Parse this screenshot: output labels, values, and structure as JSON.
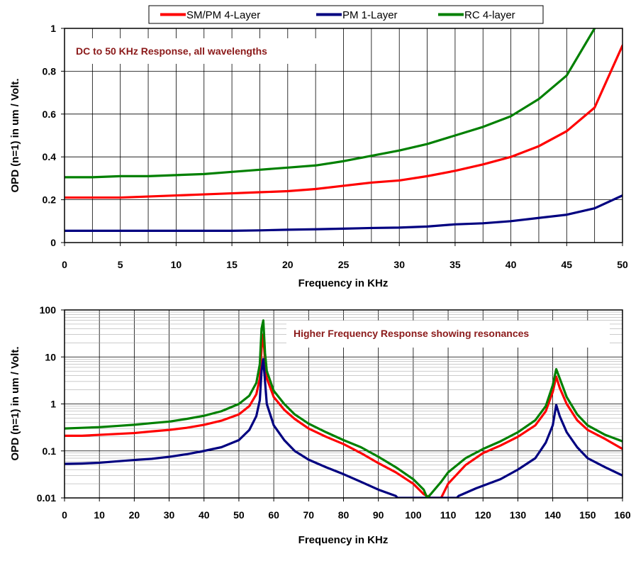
{
  "legend": {
    "items": [
      {
        "label": "SM/PM 4-Layer",
        "color": "#ff0000"
      },
      {
        "label": "PM 1-Layer",
        "color": "#000080"
      },
      {
        "label": "RC 4-layer",
        "color": "#008000"
      }
    ]
  },
  "chart_data": [
    {
      "type": "line",
      "title": "",
      "annotation": "DC to 50 KHz Response, all wavelengths",
      "xlabel": "Frequency in KHz",
      "ylabel": "OPD (n=1) in um / Volt.",
      "xlim": [
        0,
        50
      ],
      "ylim": [
        0,
        1
      ],
      "xticks": [
        "0",
        "5",
        "10",
        "15",
        "20",
        "25",
        "30",
        "35",
        "40",
        "45",
        "50"
      ],
      "yticks": [
        "0",
        "0.2",
        "0.4",
        "0.6",
        "0.8",
        "1"
      ],
      "grid": true,
      "series": [
        {
          "name": "SM/PM 4-Layer",
          "color": "#ff0000",
          "x": [
            0,
            2.5,
            5,
            7.5,
            10,
            12.5,
            15,
            17.5,
            20,
            22.5,
            25,
            27.5,
            30,
            32.5,
            35,
            37.5,
            40,
            42.5,
            45,
            47.5,
            50
          ],
          "y": [
            0.21,
            0.21,
            0.21,
            0.215,
            0.22,
            0.225,
            0.23,
            0.235,
            0.24,
            0.25,
            0.265,
            0.28,
            0.29,
            0.31,
            0.335,
            0.365,
            0.4,
            0.45,
            0.52,
            0.63,
            0.92
          ]
        },
        {
          "name": "PM 1-Layer",
          "color": "#000080",
          "x": [
            0,
            2.5,
            5,
            7.5,
            10,
            12.5,
            15,
            17.5,
            20,
            22.5,
            25,
            27.5,
            30,
            32.5,
            35,
            37.5,
            40,
            42.5,
            45,
            47.5,
            50
          ],
          "y": [
            0.055,
            0.055,
            0.055,
            0.055,
            0.055,
            0.055,
            0.055,
            0.057,
            0.06,
            0.062,
            0.065,
            0.068,
            0.07,
            0.075,
            0.085,
            0.09,
            0.1,
            0.115,
            0.13,
            0.16,
            0.22
          ]
        },
        {
          "name": "RC 4-layer",
          "color": "#008000",
          "x": [
            0,
            2.5,
            5,
            7.5,
            10,
            12.5,
            15,
            17.5,
            20,
            22.5,
            25,
            27.5,
            30,
            32.5,
            35,
            37.5,
            40,
            42.5,
            45,
            47.5
          ],
          "y": [
            0.305,
            0.305,
            0.31,
            0.31,
            0.315,
            0.32,
            0.33,
            0.34,
            0.35,
            0.36,
            0.38,
            0.405,
            0.43,
            0.46,
            0.5,
            0.54,
            0.59,
            0.67,
            0.78,
            1.0
          ]
        }
      ]
    },
    {
      "type": "line",
      "title": "",
      "annotation": "Higher Frequency Response showing resonances",
      "xlabel": "Frequency in KHz",
      "ylabel": "OPD (n=1) in um / Volt.",
      "xlim": [
        0,
        160
      ],
      "ylim": [
        0.01,
        100
      ],
      "yscale": "log",
      "xticks": [
        "0",
        "10",
        "20",
        "30",
        "40",
        "50",
        "60",
        "70",
        "80",
        "90",
        "100",
        "110",
        "120",
        "130",
        "140",
        "150",
        "160"
      ],
      "yticks": [
        "0.01",
        "0.1",
        "1",
        "10",
        "100"
      ],
      "grid": true,
      "series": [
        {
          "name": "SM/PM 4-Layer",
          "color": "#ff0000",
          "x": [
            0,
            5,
            10,
            15,
            20,
            25,
            30,
            35,
            40,
            45,
            50,
            53,
            55,
            56,
            56.5,
            57,
            57.5,
            58,
            60,
            63,
            66,
            70,
            75,
            80,
            85,
            90,
            95,
            100,
            103,
            105,
            108,
            110,
            115,
            120,
            125,
            130,
            135,
            138,
            140,
            141,
            142,
            144,
            147,
            150,
            155,
            160
          ],
          "y": [
            0.21,
            0.21,
            0.22,
            0.23,
            0.24,
            0.26,
            0.28,
            0.31,
            0.36,
            0.44,
            0.6,
            0.9,
            1.6,
            3.5,
            15,
            30,
            8,
            3.5,
            1.4,
            0.75,
            0.48,
            0.3,
            0.2,
            0.14,
            0.09,
            0.055,
            0.035,
            0.02,
            0.012,
            0.01,
            0.01,
            0.02,
            0.05,
            0.09,
            0.13,
            0.2,
            0.35,
            0.7,
            1.8,
            3.8,
            2.2,
            1.0,
            0.45,
            0.28,
            0.18,
            0.11
          ]
        },
        {
          "name": "PM 1-Layer",
          "color": "#000080",
          "x": [
            0,
            5,
            10,
            15,
            20,
            25,
            30,
            35,
            40,
            45,
            50,
            53,
            55,
            56,
            56.5,
            57,
            57.5,
            58,
            60,
            63,
            66,
            70,
            75,
            80,
            85,
            90,
            95,
            95.5,
            112.5,
            113,
            118,
            125,
            130,
            135,
            138,
            140,
            141,
            142,
            144,
            147,
            150,
            155,
            160
          ],
          "y": [
            0.053,
            0.054,
            0.056,
            0.06,
            0.064,
            0.068,
            0.075,
            0.085,
            0.1,
            0.12,
            0.17,
            0.28,
            0.55,
            1.2,
            5,
            9,
            3,
            1.0,
            0.35,
            0.17,
            0.1,
            0.065,
            0.045,
            0.032,
            0.022,
            0.015,
            0.011,
            0.01,
            0.01,
            0.011,
            0.016,
            0.025,
            0.04,
            0.07,
            0.15,
            0.35,
            0.95,
            0.55,
            0.25,
            0.12,
            0.07,
            0.045,
            0.03
          ]
        },
        {
          "name": "RC 4-layer",
          "color": "#008000",
          "x": [
            0,
            5,
            10,
            15,
            20,
            25,
            30,
            35,
            40,
            45,
            50,
            53,
            55,
            56,
            56.5,
            57,
            57.5,
            58,
            60,
            63,
            66,
            70,
            75,
            80,
            85,
            90,
            95,
            100,
            103,
            104,
            105,
            108,
            110,
            115,
            120,
            125,
            130,
            135,
            138,
            140,
            141,
            142,
            144,
            147,
            150,
            155,
            160
          ],
          "y": [
            0.3,
            0.31,
            0.32,
            0.34,
            0.36,
            0.39,
            0.42,
            0.48,
            0.56,
            0.7,
            1.0,
            1.5,
            2.8,
            7,
            40,
            60,
            12,
            5,
            1.9,
            1.0,
            0.6,
            0.38,
            0.25,
            0.17,
            0.12,
            0.075,
            0.045,
            0.025,
            0.015,
            0.01,
            0.012,
            0.022,
            0.035,
            0.07,
            0.11,
            0.16,
            0.25,
            0.45,
            0.9,
            2.5,
            5.5,
            3.5,
            1.4,
            0.6,
            0.35,
            0.22,
            0.16
          ]
        }
      ]
    }
  ]
}
